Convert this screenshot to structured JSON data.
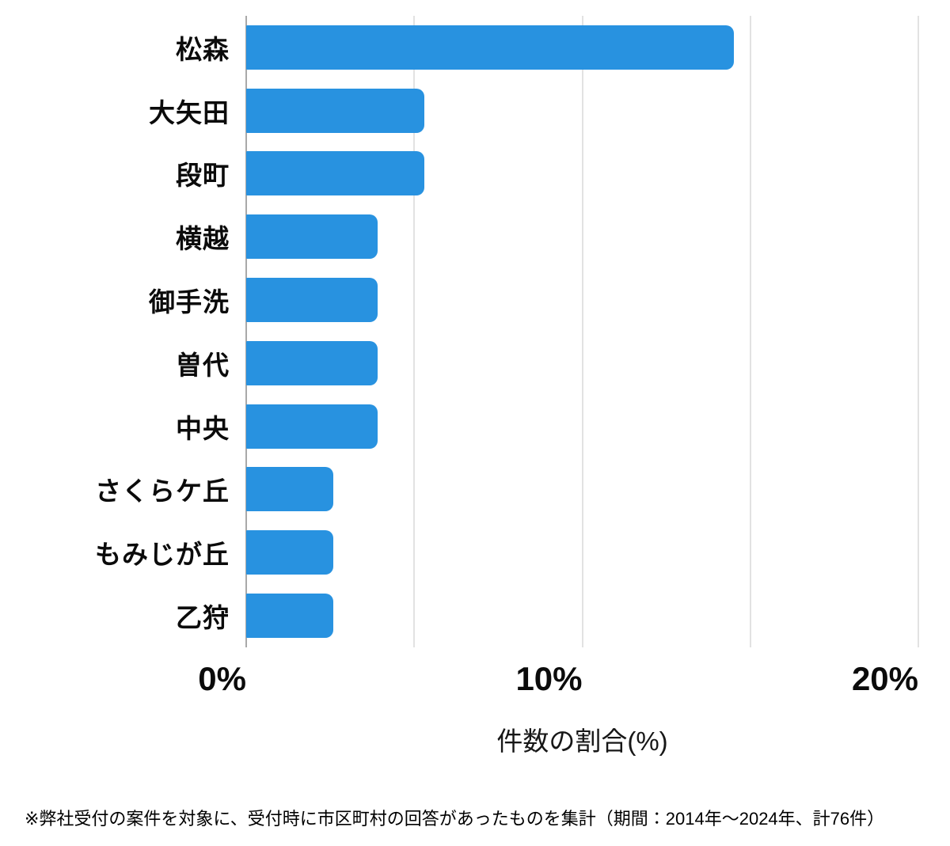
{
  "chart_data": {
    "type": "bar",
    "orientation": "horizontal",
    "title": "",
    "categories": [
      "松森",
      "大矢田",
      "段町",
      "横越",
      "御手洗",
      "曽代",
      "中央",
      "さくらケ丘",
      "もみじが丘",
      "乙狩"
    ],
    "values": [
      14.5,
      5.3,
      5.3,
      3.9,
      3.9,
      3.9,
      3.9,
      2.6,
      2.6,
      2.6
    ],
    "value_unit": "%",
    "xlabel": "件数の割合(%)",
    "ylabel": "",
    "xlim": [
      0,
      20
    ],
    "xticks": [
      {
        "value": 0,
        "label": "0%"
      },
      {
        "value": 10,
        "label": "10%"
      },
      {
        "value": 20,
        "label": "20%"
      }
    ],
    "gridline_interval": 5,
    "grid": "vertical",
    "legend": "none",
    "colors": {
      "bar": "#2892E0",
      "gridline": "#e2e2e2",
      "axis_line": "#a9a9a9",
      "text": "#0b0b0b"
    }
  },
  "footnote": "※弊社受付の案件を対象に、受付時に市区町村の回答があったものを集計（期間：2014年～2024年、計76件）"
}
